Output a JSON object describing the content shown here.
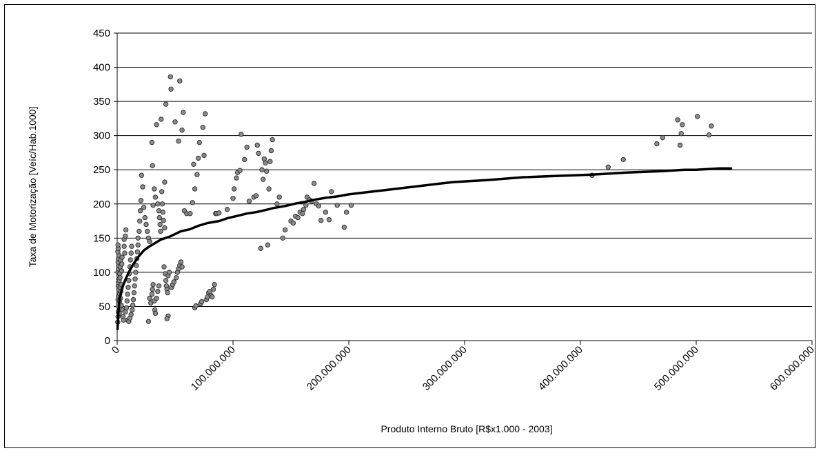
{
  "chart_data": {
    "type": "scatter",
    "title": "",
    "xlabel": "Produto Interno Bruto [R$x1.000 - 2003]",
    "ylabel": "Taxa de Motorização [Veíc/Hab.1000]",
    "xlim": [
      0,
      600000
    ],
    "ylim": [
      0,
      450
    ],
    "grid": true,
    "legend": "none",
    "x_tick_labels": [
      "0",
      "100.000.000",
      "200.000.000",
      "300.000.000",
      "400.000.000",
      "500.000.000",
      "600.000.000"
    ],
    "y_tick_labels": [
      "0",
      "50",
      "100",
      "150",
      "200",
      "250",
      "300",
      "350",
      "400",
      "450"
    ],
    "series": [
      {
        "kind": "points",
        "color": "#8c8c8c",
        "points": [
          [
            500,
            27
          ],
          [
            700,
            35
          ],
          [
            900,
            42
          ],
          [
            1000,
            50
          ],
          [
            1200,
            55
          ],
          [
            800,
            60
          ],
          [
            1000,
            65
          ],
          [
            1500,
            70
          ],
          [
            1200,
            75
          ],
          [
            900,
            80
          ],
          [
            1100,
            85
          ],
          [
            1300,
            90
          ],
          [
            1500,
            95
          ],
          [
            700,
            100
          ],
          [
            1000,
            105
          ],
          [
            1200,
            110
          ],
          [
            800,
            115
          ],
          [
            1000,
            120
          ],
          [
            1400,
            125
          ],
          [
            600,
            130
          ],
          [
            900,
            135
          ],
          [
            700,
            140
          ],
          [
            1800,
            40
          ],
          [
            2000,
            58
          ],
          [
            2200,
            68
          ],
          [
            2500,
            78
          ],
          [
            1800,
            88
          ],
          [
            2200,
            98
          ],
          [
            2600,
            108
          ],
          [
            3000,
            118
          ],
          [
            2800,
            62
          ],
          [
            3200,
            72
          ],
          [
            3500,
            82
          ],
          [
            2500,
            92
          ],
          [
            3800,
            102
          ],
          [
            4000,
            112
          ],
          [
            4200,
            122
          ],
          [
            3500,
            52
          ],
          [
            4500,
            45
          ],
          [
            5000,
            35
          ],
          [
            5500,
            30
          ],
          [
            6000,
            138
          ],
          [
            6500,
            128
          ],
          [
            6000,
            148
          ],
          [
            7000,
            153
          ],
          [
            7500,
            162
          ],
          [
            7000,
            42
          ],
          [
            8000,
            48
          ],
          [
            8500,
            58
          ],
          [
            9000,
            68
          ],
          [
            9500,
            78
          ],
          [
            10000,
            88
          ],
          [
            10500,
            98
          ],
          [
            11000,
            108
          ],
          [
            11500,
            118
          ],
          [
            12000,
            128
          ],
          [
            12500,
            138
          ],
          [
            9000,
            30
          ],
          [
            10000,
            28
          ],
          [
            11000,
            33
          ],
          [
            12000,
            38
          ],
          [
            13000,
            45
          ],
          [
            13500,
            52
          ],
          [
            14000,
            60
          ],
          [
            14500,
            70
          ],
          [
            15000,
            80
          ],
          [
            15500,
            90
          ],
          [
            16000,
            100
          ],
          [
            16500,
            110
          ],
          [
            17000,
            120
          ],
          [
            17500,
            130
          ],
          [
            18000,
            140
          ],
          [
            18000,
            150
          ],
          [
            19000,
            160
          ],
          [
            19500,
            175
          ],
          [
            20000,
            190
          ],
          [
            20500,
            205
          ],
          [
            21000,
            242
          ],
          [
            22000,
            225
          ],
          [
            23000,
            195
          ],
          [
            24000,
            180
          ],
          [
            25000,
            170
          ],
          [
            26000,
            160
          ],
          [
            27000,
            150
          ],
          [
            28000,
            145
          ],
          [
            27000,
            28
          ],
          [
            28000,
            62
          ],
          [
            29000,
            55
          ],
          [
            30000,
            68
          ],
          [
            30500,
            75
          ],
          [
            31000,
            82
          ],
          [
            32000,
            58
          ],
          [
            32500,
            45
          ],
          [
            33000,
            40
          ],
          [
            34000,
            62
          ],
          [
            35000,
            72
          ],
          [
            36000,
            80
          ],
          [
            31000,
            198
          ],
          [
            30000,
            290
          ],
          [
            30500,
            256
          ],
          [
            32000,
            222
          ],
          [
            33000,
            210
          ],
          [
            34000,
            316
          ],
          [
            35000,
            200
          ],
          [
            36000,
            190
          ],
          [
            36500,
            180
          ],
          [
            37000,
            170
          ],
          [
            37500,
            160
          ],
          [
            38000,
            324
          ],
          [
            38500,
            218
          ],
          [
            39000,
            200
          ],
          [
            39500,
            188
          ],
          [
            40000,
            176
          ],
          [
            41000,
            165
          ],
          [
            42000,
            346
          ],
          [
            41000,
            232
          ],
          [
            40500,
            108
          ],
          [
            41500,
            98
          ],
          [
            42000,
            88
          ],
          [
            42500,
            80
          ],
          [
            43000,
            75
          ],
          [
            43500,
            70
          ],
          [
            44000,
            36
          ],
          [
            43000,
            32
          ],
          [
            44000,
            95
          ],
          [
            45000,
            100
          ],
          [
            46000,
            386
          ],
          [
            46500,
            368
          ],
          [
            47000,
            78
          ],
          [
            48000,
            82
          ],
          [
            49000,
            86
          ],
          [
            50000,
            320
          ],
          [
            51000,
            92
          ],
          [
            52000,
            100
          ],
          [
            53000,
            105
          ],
          [
            54000,
            110
          ],
          [
            55000,
            115
          ],
          [
            56000,
            108
          ],
          [
            53000,
            292
          ],
          [
            54000,
            380
          ],
          [
            56000,
            308
          ],
          [
            57000,
            334
          ],
          [
            58000,
            190
          ],
          [
            60000,
            186
          ],
          [
            63000,
            186
          ],
          [
            65000,
            202
          ],
          [
            66000,
            258
          ],
          [
            67000,
            222
          ],
          [
            67000,
            48
          ],
          [
            68000,
            51
          ],
          [
            69000,
            243
          ],
          [
            70000,
            267
          ],
          [
            71000,
            290
          ],
          [
            72000,
            54
          ],
          [
            73000,
            57
          ],
          [
            74000,
            312
          ],
          [
            75000,
            271
          ],
          [
            76000,
            332
          ],
          [
            77000,
            60
          ],
          [
            78000,
            64
          ],
          [
            79000,
            70
          ],
          [
            80000,
            72
          ],
          [
            81000,
            66
          ],
          [
            82000,
            64
          ],
          [
            83000,
            75
          ],
          [
            84000,
            82
          ],
          [
            85000,
            186
          ],
          [
            86000,
            186
          ],
          [
            88000,
            187
          ],
          [
            95000,
            192
          ],
          [
            100000,
            208
          ],
          [
            101000,
            222
          ],
          [
            103000,
            238
          ],
          [
            104000,
            246
          ],
          [
            106000,
            249
          ],
          [
            107000,
            302
          ],
          [
            110000,
            265
          ],
          [
            112000,
            283
          ],
          [
            114000,
            204
          ],
          [
            118000,
            210
          ],
          [
            120000,
            212
          ],
          [
            121000,
            286
          ],
          [
            122000,
            274
          ],
          [
            124000,
            135
          ],
          [
            125000,
            250
          ],
          [
            126000,
            236
          ],
          [
            127000,
            266
          ],
          [
            128000,
            260
          ],
          [
            129000,
            248
          ],
          [
            130000,
            140
          ],
          [
            131000,
            222
          ],
          [
            132000,
            262
          ],
          [
            133000,
            278
          ],
          [
            134000,
            294
          ],
          [
            138000,
            200
          ],
          [
            140000,
            210
          ],
          [
            143000,
            150
          ],
          [
            145000,
            162
          ],
          [
            150000,
            175
          ],
          [
            152000,
            172
          ],
          [
            154000,
            182
          ],
          [
            156000,
            180
          ],
          [
            158000,
            188
          ],
          [
            160000,
            186
          ],
          [
            161000,
            192
          ],
          [
            163000,
            198
          ],
          [
            164000,
            210
          ],
          [
            166000,
            206
          ],
          [
            168000,
            204
          ],
          [
            170000,
            230
          ],
          [
            172000,
            200
          ],
          [
            174000,
            197
          ],
          [
            176000,
            176
          ],
          [
            180000,
            188
          ],
          [
            183000,
            177
          ],
          [
            185000,
            218
          ],
          [
            190000,
            198
          ],
          [
            196000,
            166
          ],
          [
            198000,
            188
          ],
          [
            202000,
            198
          ],
          [
            410000,
            242
          ],
          [
            424000,
            254
          ],
          [
            437000,
            265
          ],
          [
            466000,
            288
          ],
          [
            471000,
            297
          ],
          [
            484000,
            323
          ],
          [
            486000,
            286
          ],
          [
            487000,
            303
          ],
          [
            488000,
            316
          ],
          [
            501000,
            328
          ],
          [
            511000,
            301
          ],
          [
            513000,
            314
          ]
        ]
      },
      {
        "kind": "trend",
        "color": "#000000",
        "points": [
          [
            300,
            17
          ],
          [
            1000,
            40
          ],
          [
            2000,
            60
          ],
          [
            3500,
            72
          ],
          [
            5000,
            80
          ],
          [
            7000,
            89
          ],
          [
            10000,
            100
          ],
          [
            14000,
            112
          ],
          [
            18000,
            122
          ],
          [
            23000,
            132
          ],
          [
            28000,
            138
          ],
          [
            33000,
            143
          ],
          [
            38000,
            148
          ],
          [
            45000,
            152
          ],
          [
            50000,
            156
          ],
          [
            55000,
            160
          ],
          [
            63000,
            163
          ],
          [
            70000,
            168
          ],
          [
            78000,
            172
          ],
          [
            88000,
            175
          ],
          [
            95000,
            179
          ],
          [
            105000,
            183
          ],
          [
            112000,
            186
          ],
          [
            120000,
            188
          ],
          [
            128000,
            191
          ],
          [
            135000,
            194
          ],
          [
            145000,
            197
          ],
          [
            155000,
            201
          ],
          [
            162000,
            203
          ],
          [
            170000,
            206
          ],
          [
            180000,
            209
          ],
          [
            190000,
            211
          ],
          [
            200000,
            214
          ],
          [
            210000,
            216
          ],
          [
            220000,
            218
          ],
          [
            230000,
            220
          ],
          [
            240000,
            222
          ],
          [
            250000,
            224
          ],
          [
            260000,
            226
          ],
          [
            270000,
            228
          ],
          [
            280000,
            230
          ],
          [
            290000,
            232
          ],
          [
            300000,
            233
          ],
          [
            310000,
            234
          ],
          [
            320000,
            235
          ],
          [
            335000,
            237
          ],
          [
            350000,
            239
          ],
          [
            365000,
            240
          ],
          [
            380000,
            241
          ],
          [
            395000,
            242
          ],
          [
            410000,
            243
          ],
          [
            420000,
            244
          ],
          [
            430000,
            245
          ],
          [
            440000,
            246
          ],
          [
            455000,
            247
          ],
          [
            470000,
            248
          ],
          [
            480000,
            249
          ],
          [
            490000,
            250
          ],
          [
            500000,
            250
          ],
          [
            510000,
            251
          ],
          [
            520000,
            252
          ],
          [
            530000,
            252
          ]
        ]
      }
    ]
  }
}
